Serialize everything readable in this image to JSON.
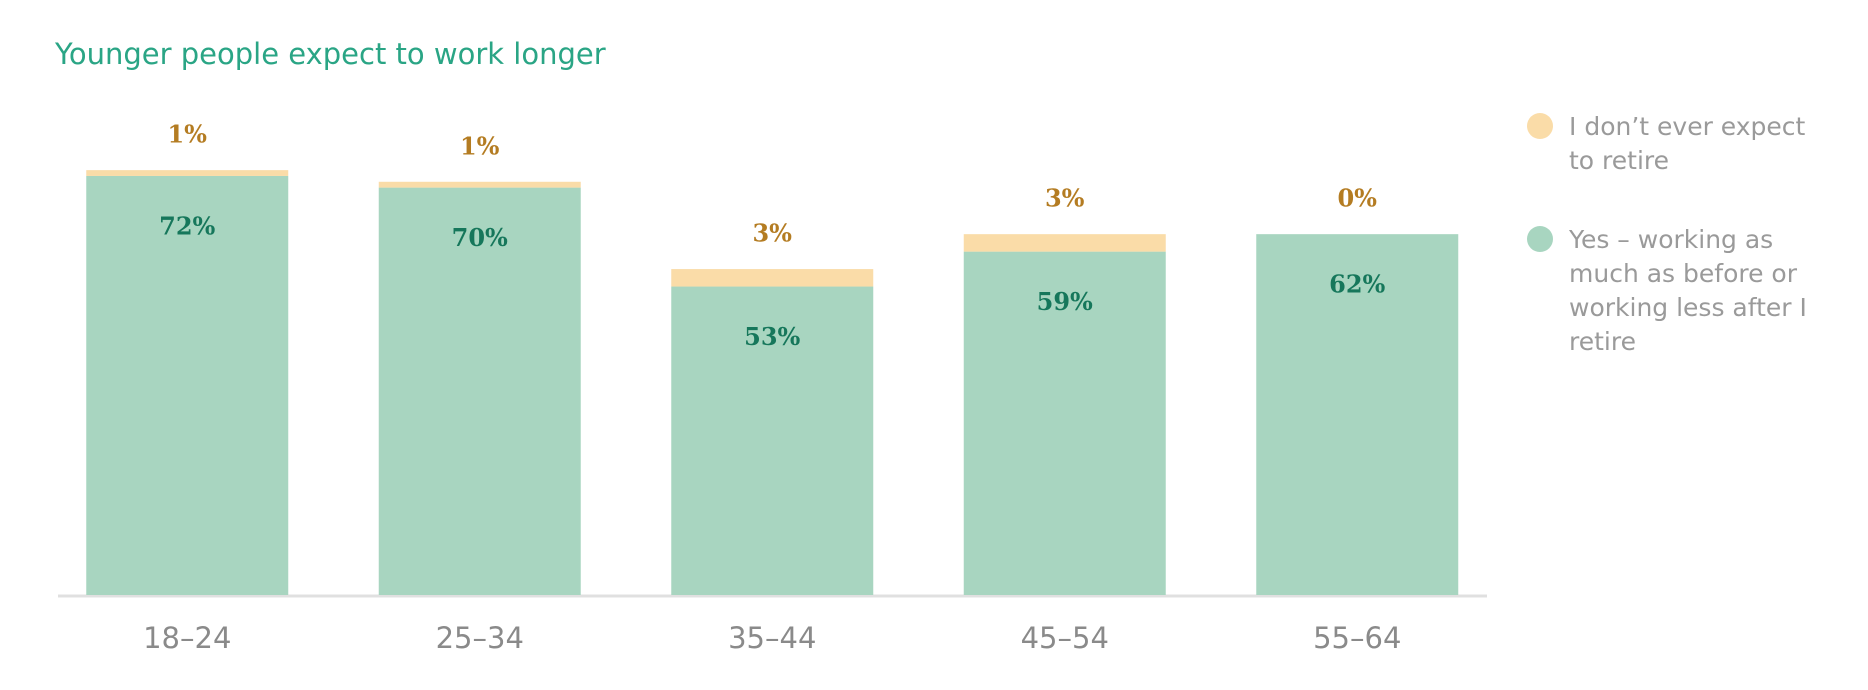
{
  "chart_data": {
    "type": "stacked_bar",
    "title": "Younger people expect to work longer",
    "categories": [
      "18–24",
      "25–34",
      "35–44",
      "45–54",
      "55–64"
    ],
    "series": [
      {
        "name": "Yes – working as much as before or working less after I retire",
        "color": "#a8d5c0",
        "label_color": "#16775b",
        "values": [
          72,
          70,
          53,
          59,
          62
        ],
        "value_labels": [
          "72%",
          "70%",
          "53%",
          "59%",
          "62%"
        ]
      },
      {
        "name": "I don’t ever expect to retire",
        "color": "#fadca8",
        "label_color": "#b47c22",
        "values": [
          1,
          1,
          3,
          3,
          0
        ],
        "value_labels": [
          "1%",
          "1%",
          "3%",
          "3%",
          "0%"
        ]
      }
    ],
    "ylim": [
      0,
      100
    ],
    "legend": "right"
  }
}
